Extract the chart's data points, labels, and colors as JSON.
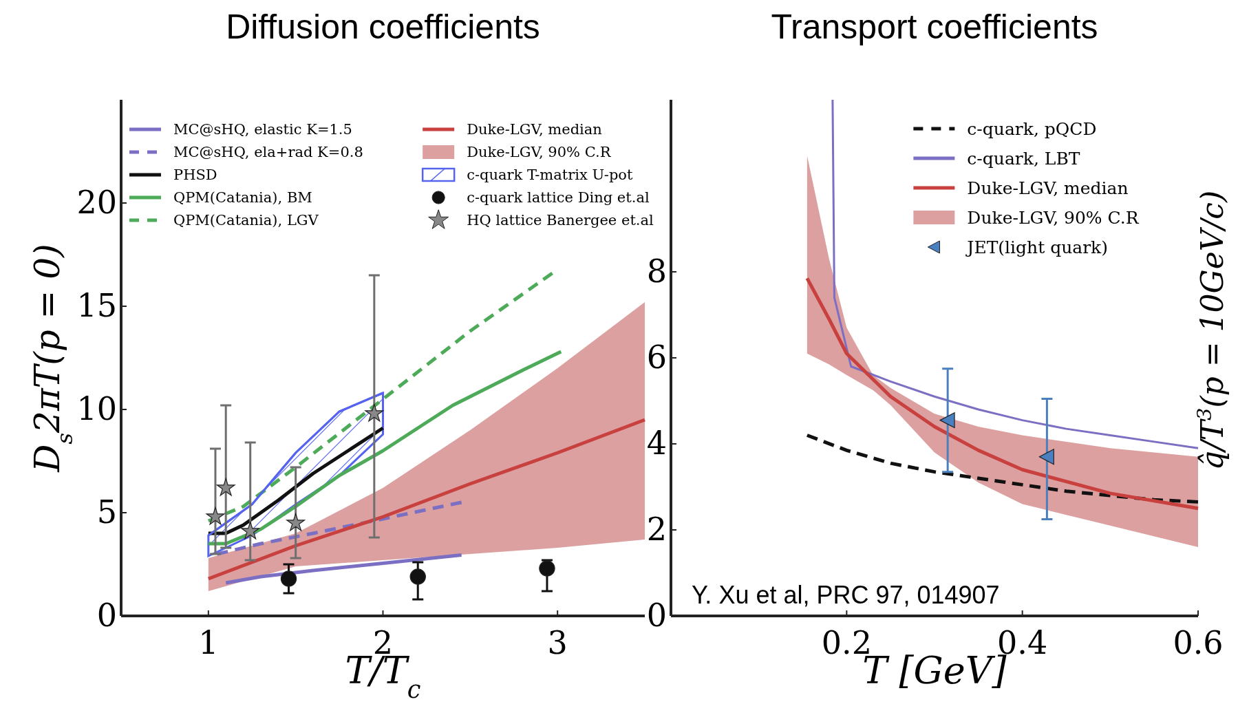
{
  "chart_data": [
    {
      "type": "line",
      "title": "Diffusion coefficients",
      "xlabel": "T/T$_{c}$",
      "ylabel": "D$_{s}$2πT(p = 0)",
      "xlim": [
        0.5,
        3.5
      ],
      "ylim": [
        0,
        25
      ],
      "xticks": [
        1,
        2,
        3
      ],
      "yticks": [
        0,
        5,
        10,
        15,
        20
      ],
      "legend": "top",
      "grid": false,
      "annotations": [
        "Duke-LGV, 90% C.R"
      ],
      "series": [
        {
          "name": "MC@sHQ, elastic K=1.5",
          "type": "line",
          "color": "#7a6fc2",
          "x": [
            1.1,
            1.3,
            1.6,
            2.0,
            2.45
          ],
          "values": [
            1.6,
            1.9,
            2.2,
            2.55,
            2.95
          ]
        },
        {
          "name": "MC@sHQ, ela+rad K=0.8",
          "type": "line",
          "line_style": "dashed",
          "color": "#7a6fc2",
          "x": [
            1.05,
            1.3,
            1.6,
            2.0,
            2.45
          ],
          "values": [
            3.0,
            3.5,
            4.0,
            4.7,
            5.5
          ]
        },
        {
          "name": "PHSD",
          "type": "line",
          "color": "#111111",
          "x": [
            1.0,
            1.1,
            1.2,
            1.4,
            1.6,
            1.8,
            2.0
          ],
          "values": [
            4.0,
            4.0,
            4.4,
            5.6,
            6.9,
            8.0,
            9.1
          ]
        },
        {
          "name": "QPM(Catania), BM",
          "type": "line",
          "color": "#4caa58",
          "x": [
            1.0,
            1.1,
            1.3,
            1.5,
            1.75,
            2.0,
            2.4,
            2.8,
            3.02
          ],
          "values": [
            3.5,
            3.5,
            4.2,
            5.3,
            6.8,
            8.0,
            10.2,
            11.9,
            12.8
          ]
        },
        {
          "name": "QPM(Catania), LGV",
          "type": "line",
          "line_style": "dashed",
          "color": "#4caa58",
          "x": [
            1.0,
            1.2,
            1.5,
            2.0,
            2.5,
            2.97
          ],
          "values": [
            4.6,
            5.3,
            7.2,
            10.5,
            13.8,
            16.6
          ]
        },
        {
          "name": "Duke-LGV, median",
          "type": "line",
          "color": "#c8413f",
          "x": [
            1.0,
            1.5,
            2.0,
            2.5,
            3.0,
            3.5
          ],
          "values": [
            1.8,
            3.4,
            4.8,
            6.4,
            7.9,
            9.5
          ],
          "lower": [
            1.2,
            2.4,
            2.7,
            3.0,
            3.3,
            3.7
          ],
          "upper": [
            2.8,
            4.0,
            6.2,
            9.0,
            12.0,
            15.2
          ]
        },
        {
          "name": "c-quark T-matrix U-pot",
          "type": "line",
          "color": "#5563f0",
          "x": [
            1.0,
            1.25,
            1.5,
            1.75,
            2.0
          ],
          "values": [
            3.9,
            5.4,
            7.9,
            9.9,
            10.8
          ],
          "lower": [
            2.9,
            3.9,
            5.4,
            6.8,
            8.8
          ],
          "upper": [
            3.9,
            5.4,
            7.9,
            9.9,
            10.8
          ]
        },
        {
          "name": "c-quark lattice Ding et.al",
          "type": "scatter",
          "marker": "circle",
          "color": "#111111",
          "x": [
            1.46,
            2.2,
            2.94
          ],
          "values": [
            1.8,
            1.9,
            2.3
          ],
          "errors": [
            [
              1.1,
              2.5
            ],
            [
              0.8,
              2.6
            ],
            [
              1.2,
              2.7
            ]
          ]
        },
        {
          "name": "HQ lattice Banergee et.al",
          "type": "scatter",
          "marker": "star",
          "color": "#888888",
          "x": [
            1.04,
            1.1,
            1.24,
            1.5,
            1.95
          ],
          "values": [
            4.8,
            6.2,
            4.1,
            4.5,
            9.8
          ],
          "errors": [
            [
              3.0,
              8.1
            ],
            [
              3.3,
              10.2
            ],
            [
              2.7,
              8.4
            ],
            [
              2.8,
              7.2
            ],
            [
              3.8,
              16.5
            ]
          ]
        }
      ]
    },
    {
      "type": "line",
      "title": "Transport coefficients",
      "xlabel": "T [GeV]",
      "ylabel": "q̂/T$^{3}$(p = 10GeV/c)",
      "xlim": [
        0,
        0.6
      ],
      "ylim": [
        0,
        12
      ],
      "xticks": [
        0.2,
        0.4,
        0.6
      ],
      "yticks": [
        0,
        2,
        4,
        6,
        8
      ],
      "legend": "top right",
      "grid": false,
      "annotations": [
        "Duke-LGV, 90% C.R",
        "Y. Xu et al, PRC 97, 014907"
      ],
      "series": [
        {
          "name": "c-quark, pQCD",
          "type": "line",
          "line_style": "dashed",
          "color": "#111111",
          "x": [
            0.155,
            0.2,
            0.25,
            0.3,
            0.35,
            0.4,
            0.45,
            0.5,
            0.55,
            0.6
          ],
          "values": [
            4.2,
            3.85,
            3.55,
            3.35,
            3.2,
            3.05,
            2.9,
            2.8,
            2.7,
            2.65
          ]
        },
        {
          "name": "c-quark, LBT",
          "type": "line",
          "color": "#7a6fc2",
          "x": [
            0.184,
            0.186,
            0.205,
            0.25,
            0.3,
            0.35,
            0.4,
            0.45,
            0.5,
            0.55,
            0.6
          ],
          "values": [
            12,
            7.4,
            5.8,
            5.45,
            5.1,
            4.8,
            4.55,
            4.35,
            4.2,
            4.05,
            3.9
          ]
        },
        {
          "name": "Duke-LGV, median",
          "type": "line",
          "color": "#c8413f",
          "x": [
            0.155,
            0.18,
            0.2,
            0.23,
            0.25,
            0.3,
            0.35,
            0.4,
            0.5,
            0.6
          ],
          "values": [
            7.85,
            6.9,
            6.1,
            5.5,
            5.1,
            4.4,
            3.85,
            3.4,
            2.85,
            2.5
          ],
          "lower": [
            6.1,
            5.85,
            5.6,
            5.25,
            4.9,
            3.8,
            3.1,
            2.6,
            2.1,
            1.6
          ],
          "upper": [
            10.7,
            8.3,
            6.7,
            5.6,
            5.3,
            4.7,
            4.4,
            4.2,
            3.9,
            3.7
          ]
        },
        {
          "name": "JET(light quark)",
          "type": "scatter",
          "marker": "triangle",
          "color": "#4a7fc0",
          "x": [
            0.315,
            0.428
          ],
          "values": [
            4.55,
            3.7
          ],
          "errors": [
            [
              3.35,
              5.75
            ],
            [
              2.25,
              5.05
            ]
          ]
        }
      ]
    }
  ]
}
